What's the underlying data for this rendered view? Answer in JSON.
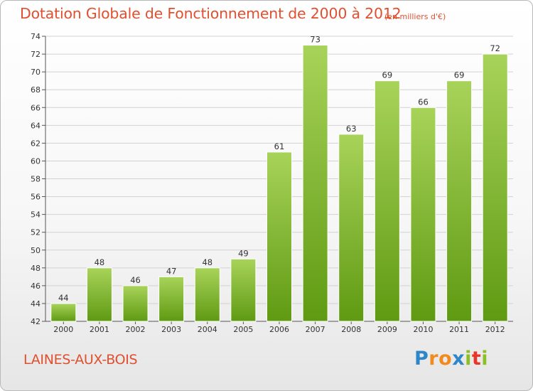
{
  "chart_data": {
    "type": "bar",
    "title": "Dotation Globale de Fonctionnement de 2000 à 2012",
    "subtitle": "(en milliers d'€)",
    "categories": [
      "2000",
      "2001",
      "2002",
      "2003",
      "2004",
      "2005",
      "2006",
      "2007",
      "2008",
      "2009",
      "2010",
      "2011",
      "2012"
    ],
    "values": [
      44,
      48,
      46,
      47,
      48,
      49,
      61,
      73,
      63,
      69,
      66,
      69,
      72
    ],
    "ylim": [
      42,
      74
    ],
    "yticks": [
      42,
      44,
      46,
      48,
      50,
      52,
      54,
      56,
      58,
      60,
      62,
      64,
      66,
      68,
      70,
      72,
      74
    ],
    "grid": true,
    "bar_colors": {
      "top": "#a8d35a",
      "bottom": "#5f9a12"
    }
  },
  "footer": {
    "commune": "LAINES-AUX-BOIS",
    "logo": {
      "letters": [
        "P",
        "r",
        "o",
        "x",
        "i",
        "t",
        "i"
      ],
      "colors": [
        "#2d86c8",
        "#f28b1e",
        "#f28b1e",
        "#2d86c8",
        "#8cbf26",
        "#e8372a",
        "#8cbf26"
      ]
    }
  }
}
